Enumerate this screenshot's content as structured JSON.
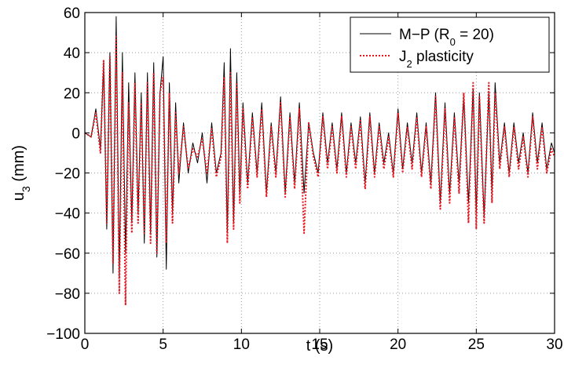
{
  "chart_data": {
    "type": "line",
    "title": "",
    "xlabel": "t (s)",
    "ylabel": {
      "base": "u",
      "sub": "3",
      "rest": " (mm)"
    },
    "xlim": [
      0,
      30
    ],
    "ylim": [
      -100,
      60
    ],
    "xticks": [
      0,
      5,
      10,
      15,
      20,
      25,
      30
    ],
    "yticks": [
      -100,
      -80,
      -60,
      -40,
      -20,
      0,
      20,
      40,
      60
    ],
    "grid": true,
    "legend_position": "top-right",
    "series": [
      {
        "name": {
          "base": "M−P (R",
          "sub": "0",
          "rest": " = 20)"
        },
        "color": "#000000",
        "style": "solid",
        "x": [
          0.0,
          0.4,
          0.7,
          1.0,
          1.2,
          1.4,
          1.6,
          1.8,
          2.0,
          2.2,
          2.4,
          2.6,
          2.8,
          3.0,
          3.2,
          3.4,
          3.6,
          3.8,
          4.0,
          4.2,
          4.4,
          4.6,
          4.8,
          5.0,
          5.2,
          5.4,
          5.6,
          5.8,
          6.0,
          6.3,
          6.6,
          6.9,
          7.2,
          7.5,
          7.8,
          8.1,
          8.4,
          8.7,
          8.9,
          9.1,
          9.3,
          9.5,
          9.7,
          9.9,
          10.1,
          10.4,
          10.7,
          11.0,
          11.3,
          11.6,
          11.9,
          12.2,
          12.5,
          12.8,
          13.1,
          13.4,
          13.7,
          14.0,
          14.3,
          14.6,
          14.9,
          15.2,
          15.5,
          15.8,
          16.1,
          16.4,
          16.7,
          17.0,
          17.3,
          17.6,
          17.9,
          18.2,
          18.5,
          18.8,
          19.1,
          19.4,
          19.7,
          20.0,
          20.3,
          20.6,
          20.9,
          21.2,
          21.5,
          21.8,
          22.1,
          22.4,
          22.7,
          23.0,
          23.3,
          23.6,
          23.9,
          24.2,
          24.5,
          24.8,
          25.0,
          25.2,
          25.5,
          25.8,
          26.0,
          26.2,
          26.5,
          26.8,
          27.1,
          27.4,
          27.7,
          28.0,
          28.3,
          28.6,
          28.9,
          29.2,
          29.5,
          29.8,
          30.0
        ],
        "y": [
          0,
          -2,
          12,
          -8,
          35,
          -48,
          40,
          -70,
          58,
          -72,
          40,
          -60,
          25,
          -45,
          30,
          -40,
          20,
          -55,
          30,
          -50,
          35,
          -62,
          20,
          38,
          -68,
          25,
          -40,
          15,
          -25,
          5,
          -20,
          -5,
          -15,
          0,
          -25,
          5,
          -20,
          -10,
          35,
          -50,
          42,
          -45,
          30,
          -30,
          15,
          -25,
          10,
          -20,
          15,
          -30,
          5,
          -20,
          18,
          -30,
          10,
          -25,
          15,
          -30,
          5,
          -10,
          -20,
          10,
          -15,
          5,
          -18,
          10,
          -20,
          5,
          -15,
          8,
          -25,
          10,
          -20,
          5,
          -15,
          0,
          -20,
          12,
          -18,
          5,
          -15,
          10,
          -20,
          5,
          -25,
          20,
          -35,
          15,
          -30,
          10,
          -25,
          18,
          -35,
          22,
          -40,
          20,
          -42,
          20,
          -30,
          25,
          -15,
          5,
          -20,
          5,
          -15,
          0,
          -20,
          10,
          -15,
          5,
          -18,
          -5,
          -10
        ]
      },
      {
        "name": {
          "base": "J",
          "sub": "2",
          "rest": " plasticity"
        },
        "color": "#e8141e",
        "style": "dotted",
        "x": [
          0.0,
          0.4,
          0.7,
          1.0,
          1.2,
          1.4,
          1.6,
          1.8,
          2.0,
          2.2,
          2.4,
          2.6,
          2.8,
          3.0,
          3.2,
          3.4,
          3.6,
          3.8,
          4.0,
          4.2,
          4.4,
          4.6,
          4.8,
          5.0,
          5.2,
          5.4,
          5.6,
          5.8,
          6.0,
          6.3,
          6.6,
          6.9,
          7.2,
          7.5,
          7.8,
          8.1,
          8.4,
          8.7,
          8.9,
          9.1,
          9.3,
          9.5,
          9.7,
          9.9,
          10.1,
          10.4,
          10.7,
          11.0,
          11.3,
          11.6,
          11.9,
          12.2,
          12.5,
          12.8,
          13.1,
          13.4,
          13.7,
          14.0,
          14.3,
          14.6,
          14.9,
          15.2,
          15.5,
          15.8,
          16.1,
          16.4,
          16.7,
          17.0,
          17.3,
          17.6,
          17.9,
          18.2,
          18.5,
          18.8,
          19.1,
          19.4,
          19.7,
          20.0,
          20.3,
          20.6,
          20.9,
          21.2,
          21.5,
          21.8,
          22.1,
          22.4,
          22.7,
          23.0,
          23.3,
          23.6,
          23.9,
          24.2,
          24.5,
          24.8,
          25.0,
          25.2,
          25.5,
          25.8,
          26.0,
          26.2,
          26.5,
          26.8,
          27.1,
          27.4,
          27.7,
          28.0,
          28.3,
          28.6,
          28.9,
          29.2,
          29.5,
          29.8,
          30.0
        ],
        "y": [
          0,
          -2,
          10,
          -10,
          36,
          -45,
          38,
          -65,
          48,
          -80,
          30,
          -86,
          15,
          -50,
          25,
          -45,
          15,
          -50,
          25,
          -55,
          30,
          -60,
          20,
          28,
          -55,
          20,
          -45,
          10,
          -20,
          3,
          -18,
          -8,
          -12,
          -3,
          -20,
          2,
          -22,
          -12,
          28,
          -55,
          30,
          -48,
          25,
          -35,
          12,
          -28,
          8,
          -22,
          12,
          -32,
          3,
          -22,
          15,
          -32,
          8,
          -28,
          12,
          -50,
          5,
          -12,
          -22,
          8,
          -18,
          3,
          -20,
          8,
          -22,
          3,
          -18,
          6,
          -28,
          8,
          -22,
          3,
          -18,
          -2,
          -22,
          10,
          -20,
          3,
          -18,
          8,
          -22,
          3,
          -28,
          18,
          -38,
          12,
          -35,
          8,
          -30,
          20,
          -45,
          25,
          -48,
          18,
          -45,
          25,
          -35,
          20,
          -18,
          3,
          -22,
          3,
          -18,
          -2,
          -22,
          8,
          -18,
          3,
          -20,
          -8,
          -12
        ]
      }
    ]
  }
}
